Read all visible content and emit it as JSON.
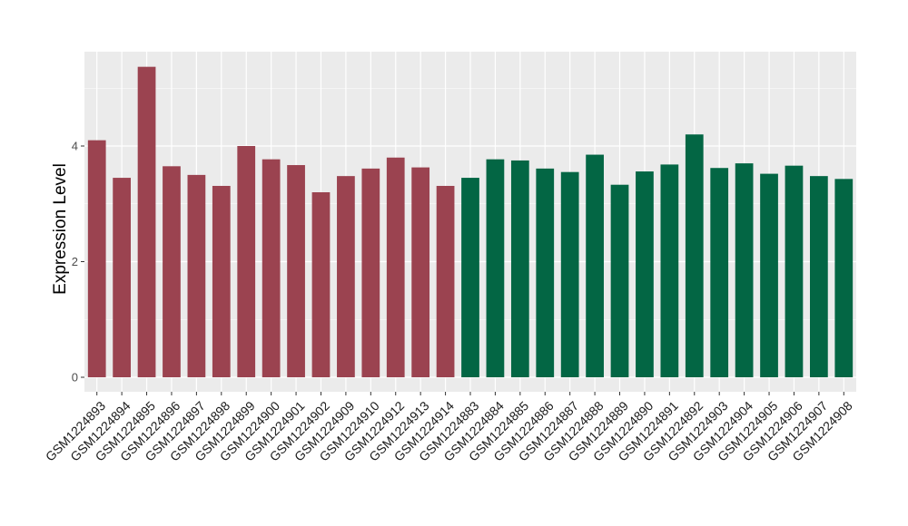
{
  "chart_data": {
    "type": "bar",
    "title": "",
    "xlabel": "",
    "ylabel": "Expression Level",
    "ylim": [
      0,
      5.6
    ],
    "yticks": [
      0,
      2,
      4
    ],
    "grid": true,
    "legend": "none",
    "colors": {
      "panel_background": "#ebebeb",
      "grid_major": "#ffffff",
      "group_a": "#9b4350",
      "group_b": "#036644"
    },
    "categories": [
      "GSM1224893",
      "GSM1224894",
      "GSM1224895",
      "GSM1224896",
      "GSM1224897",
      "GSM1224898",
      "GSM1224899",
      "GSM1224900",
      "GSM1224901",
      "GSM1224902",
      "GSM1224909",
      "GSM1224910",
      "GSM1224912",
      "GSM1224913",
      "GSM1224914",
      "GSM1224883",
      "GSM1224884",
      "GSM1224885",
      "GSM1224886",
      "GSM1224887",
      "GSM1224888",
      "GSM1224889",
      "GSM1224890",
      "GSM1224891",
      "GSM1224892",
      "GSM1224903",
      "GSM1224904",
      "GSM1224905",
      "GSM1224906",
      "GSM1224907",
      "GSM1224908"
    ],
    "values": [
      4.1,
      3.45,
      5.37,
      3.65,
      3.5,
      3.31,
      4.0,
      3.77,
      3.67,
      3.2,
      3.48,
      3.61,
      3.8,
      3.63,
      3.31,
      3.45,
      3.77,
      3.75,
      3.61,
      3.55,
      3.85,
      3.33,
      3.56,
      3.68,
      4.2,
      3.62,
      3.7,
      3.52,
      3.66,
      3.48,
      3.43
    ],
    "groups": [
      "a",
      "a",
      "a",
      "a",
      "a",
      "a",
      "a",
      "a",
      "a",
      "a",
      "a",
      "a",
      "a",
      "a",
      "a",
      "b",
      "b",
      "b",
      "b",
      "b",
      "b",
      "b",
      "b",
      "b",
      "b",
      "b",
      "b",
      "b",
      "b",
      "b",
      "b"
    ]
  }
}
